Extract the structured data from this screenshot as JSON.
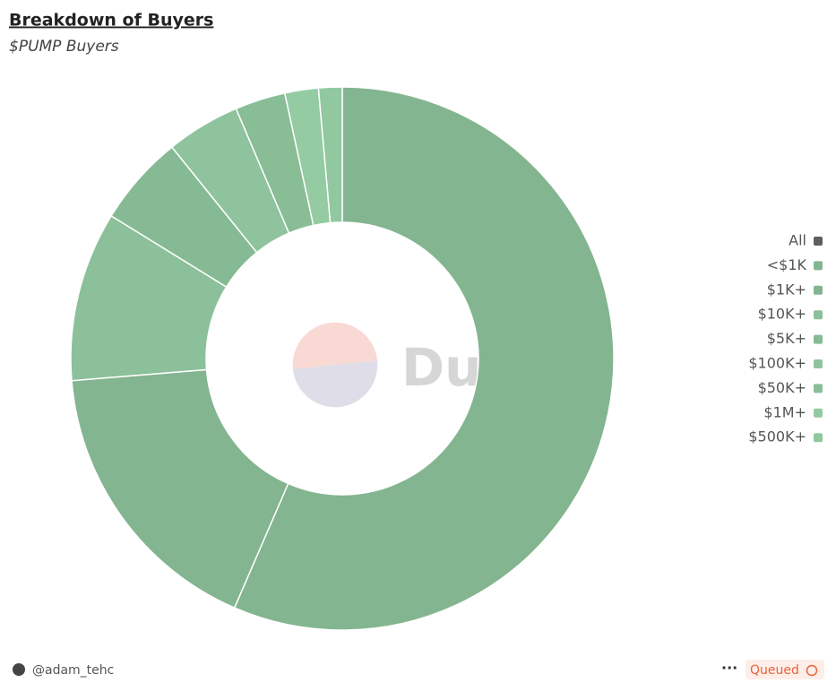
{
  "chart_data": {
    "type": "donut",
    "title": "Breakdown of Buyers",
    "subtitle": "$PUMP Buyers",
    "categories": [
      "<$1K",
      "$1K+",
      "$10K+",
      "$5K+",
      "$100K+",
      "$50K+",
      "$1M+",
      "$500K+"
    ],
    "values": [
      56.5,
      17.2,
      10.1,
      5.4,
      4.4,
      3.0,
      2.0,
      1.4
    ],
    "colors": [
      "#83b590",
      "#83b590",
      "#8bc09a",
      "#86ba94",
      "#8fc39d",
      "#89bd96",
      "#94cba2",
      "#92c8a0"
    ],
    "legend_all": "All",
    "legend_all_color": "#5f5f5f",
    "legend_position": "right",
    "watermark": "Dune"
  },
  "footer": {
    "author": "@adam_tehc",
    "menu": "···",
    "status": "Queued"
  }
}
